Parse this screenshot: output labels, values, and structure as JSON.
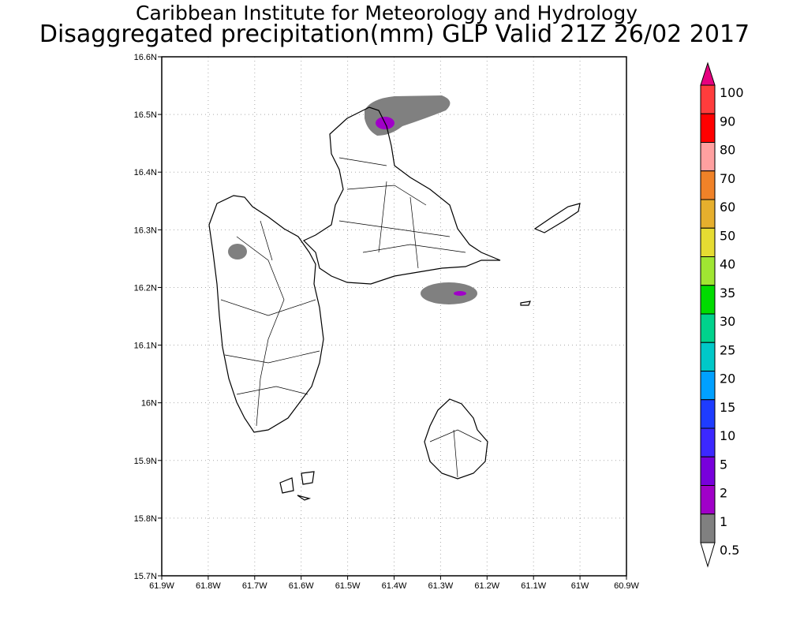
{
  "header": {
    "title": "Caribbean Institute for Meteorology and Hydrology",
    "subtitle": "Disaggregated precipitation(mm) GLP Valid 21Z 26/02 2017"
  },
  "axes": {
    "x_ticks": [
      "61.9W",
      "61.8W",
      "61.7W",
      "61.6W",
      "61.5W",
      "61.4W",
      "61.3W",
      "61.2W",
      "61.1W",
      "61W",
      "60.9W"
    ],
    "y_ticks": [
      "16.6N",
      "16.5N",
      "16.4N",
      "16.3N",
      "16.2N",
      "16.1N",
      "16N",
      "15.9N",
      "15.8N",
      "15.7N"
    ],
    "lon_range": [
      -61.9,
      -60.9
    ],
    "lat_range": [
      15.7,
      16.6
    ]
  },
  "colorbar": {
    "labels": [
      "100",
      "90",
      "80",
      "70",
      "60",
      "50",
      "40",
      "35",
      "30",
      "25",
      "20",
      "15",
      "10",
      "5",
      "2",
      "1",
      "0.5"
    ],
    "colors": [
      "#ff3c3c",
      "#ff0000",
      "#ffa0a0",
      "#f08228",
      "#e6af2d",
      "#e6dc32",
      "#a0e632",
      "#00dc00",
      "#00d28c",
      "#00c8c8",
      "#00a0ff",
      "#1e3cff",
      "#3c28ff",
      "#7800dc",
      "#a000c8",
      "#808080"
    ],
    "top_color": "#e6007f"
  }
}
